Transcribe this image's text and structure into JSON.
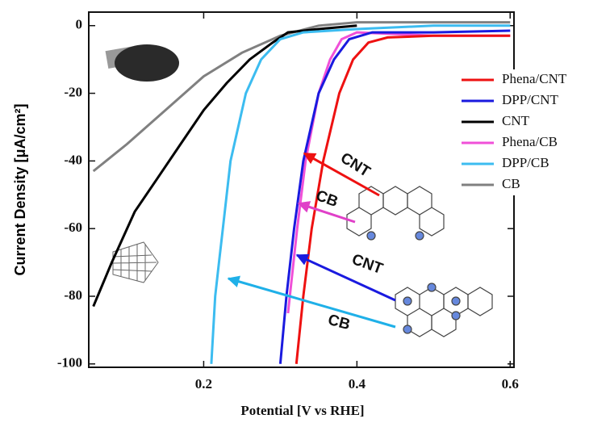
{
  "chart_data": {
    "type": "line",
    "xlabel": "Potential [V vs RHE]",
    "ylabel": "Current Density [μA/cm²]",
    "xlim": [
      0.05,
      0.605
    ],
    "ylim": [
      -101,
      4
    ],
    "xticks": [
      0.2,
      0.4,
      0.6
    ],
    "yticks": [
      0,
      -20,
      -40,
      -60,
      -80,
      -100
    ],
    "legend": "right",
    "series": [
      {
        "name": "Phena/CNT",
        "color": "#ee1111",
        "x": [
          0.321,
          0.33,
          0.341,
          0.356,
          0.377,
          0.395,
          0.415,
          0.44,
          0.5,
          0.6
        ],
        "values": [
          -100,
          -80,
          -60,
          -40,
          -20,
          -10,
          -5,
          -3.5,
          -3,
          -3
        ]
      },
      {
        "name": "DPP/CNT",
        "color": "#1a1adf",
        "x": [
          0.3,
          0.308,
          0.318,
          0.33,
          0.35,
          0.37,
          0.39,
          0.42,
          0.5,
          0.6
        ],
        "values": [
          -100,
          -80,
          -60,
          -40,
          -20,
          -10,
          -4,
          -2,
          -2,
          -1.5
        ]
      },
      {
        "name": "CNT",
        "color": "#000000",
        "x": [
          0.056,
          0.08,
          0.11,
          0.14,
          0.17,
          0.2,
          0.23,
          0.26,
          0.29,
          0.31,
          0.35,
          0.4
        ],
        "values": [
          -83,
          -70,
          -55,
          -45,
          -35,
          -25,
          -17,
          -10,
          -5,
          -2,
          -1,
          0
        ]
      },
      {
        "name": "Phena/CB",
        "color": "#f050d8",
        "x": [
          0.31,
          0.322,
          0.333,
          0.35,
          0.365,
          0.38,
          0.4,
          0.5,
          0.6
        ],
        "values": [
          -85,
          -60,
          -40,
          -20,
          -10,
          -4,
          -2,
          -3,
          -3
        ]
      },
      {
        "name": "DPP/CB",
        "color": "#3cbcf0",
        "x": [
          0.21,
          0.215,
          0.22,
          0.225,
          0.235,
          0.255,
          0.275,
          0.3,
          0.33,
          0.4,
          0.5,
          0.6
        ],
        "values": [
          -100,
          -80,
          -70,
          -60,
          -40,
          -20,
          -10,
          -4,
          -2,
          -1,
          0,
          0
        ]
      },
      {
        "name": "CB",
        "color": "#808080",
        "x": [
          0.056,
          0.1,
          0.15,
          0.2,
          0.25,
          0.3,
          0.35,
          0.4,
          0.5,
          0.6
        ],
        "values": [
          -43,
          -35,
          -25,
          -15,
          -8,
          -3,
          0,
          1,
          1,
          1
        ]
      }
    ],
    "annotations": [
      {
        "text": "CNT",
        "color": "#ee1111"
      },
      {
        "text": "CB",
        "color": "#e040c8"
      },
      {
        "text": "CNT",
        "color": "#1a1adf"
      },
      {
        "text": "CB",
        "color": "#1fb0e8"
      }
    ]
  }
}
